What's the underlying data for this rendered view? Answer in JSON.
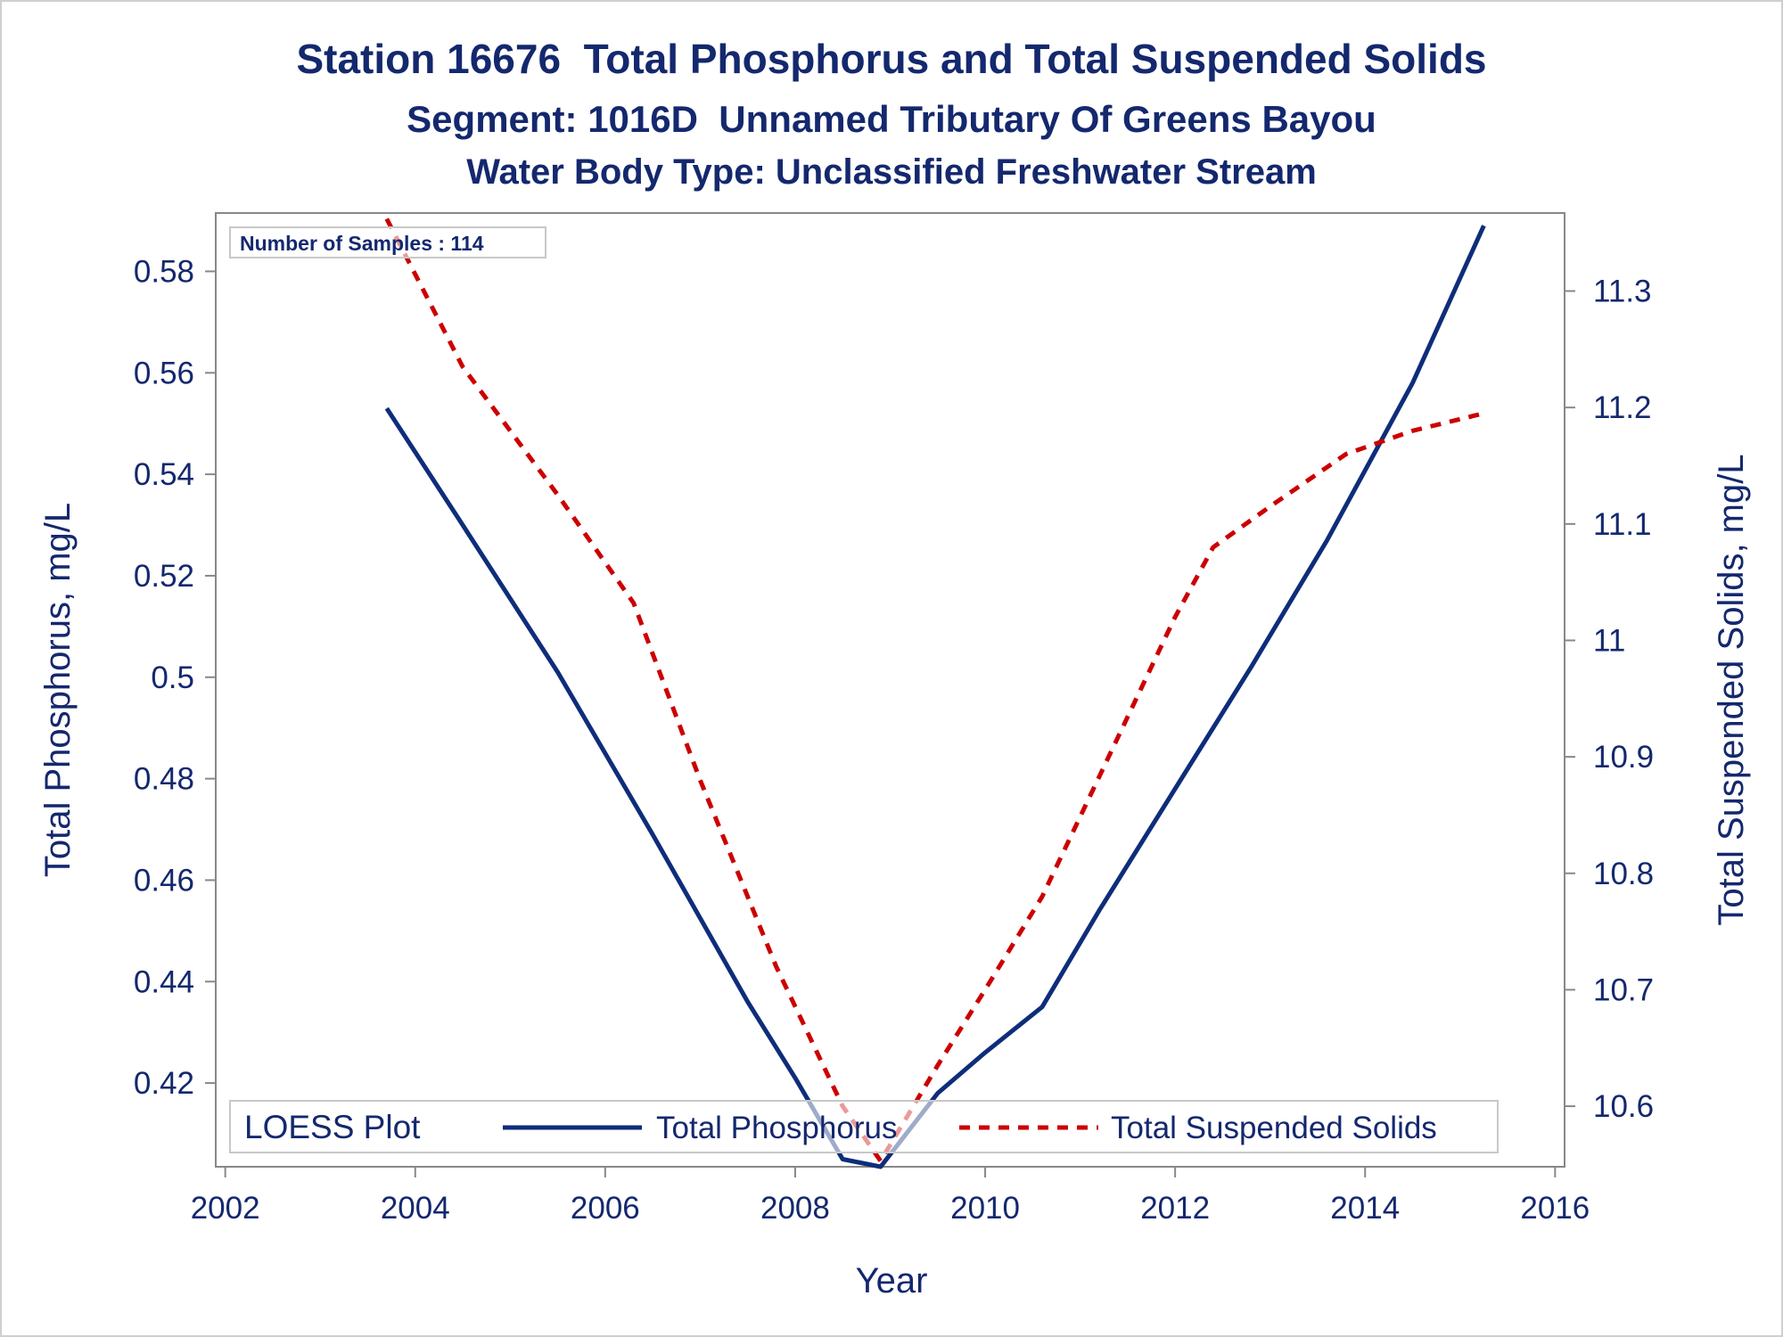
{
  "colors": {
    "text": "#14286e",
    "phosphorus": "#0e2d7a",
    "solids": "#cc0000",
    "axis": "#888888",
    "border": "#cfcfcf"
  },
  "chart_data": {
    "type": "line",
    "title": "Station 16676  Total Phosphorus and Total Suspended Solids",
    "subtitle": "Segment: 1016D  Unnamed Tributary Of Greens Bayou",
    "subtitle2": "Water Body Type: Unclassified Freshwater Stream",
    "annotation": "Number of Samples : 114",
    "xlabel": "Year",
    "ylabel_left": "Total Phosphorus, mg/L",
    "ylabel_right": "Total Suspended Solids, mg/L",
    "xlim": [
      2001.9,
      2016.1
    ],
    "ylim_left": [
      0.4035,
      0.5915
    ],
    "ylim_right": [
      10.548,
      11.367
    ],
    "x_ticks": [
      2002,
      2004,
      2006,
      2008,
      2010,
      2012,
      2014,
      2016
    ],
    "x_tick_labels": [
      "2002",
      "2004",
      "2006",
      "2008",
      "2010",
      "2012",
      "2014",
      "2016"
    ],
    "y_left_ticks": [
      0.42,
      0.44,
      0.46,
      0.48,
      0.5,
      0.52,
      0.54,
      0.56,
      0.58
    ],
    "y_left_tick_labels": [
      "0.42",
      "0.44",
      "0.46",
      "0.48",
      "0.5",
      "0.52",
      "0.54",
      "0.56",
      "0.58"
    ],
    "y_right_ticks": [
      10.6,
      10.7,
      10.8,
      10.9,
      11,
      11.1,
      11.2,
      11.3
    ],
    "y_right_tick_labels": [
      "10.6",
      "10.7",
      "10.8",
      "10.9",
      "11",
      "11.1",
      "11.2",
      "11.3"
    ],
    "grid": false,
    "legend": {
      "title": "LOESS Plot",
      "placement": "bottom-inside",
      "entries": [
        "Total Phosphorus",
        "Total Suspended Solids"
      ]
    },
    "series": [
      {
        "name": "Total Phosphorus",
        "axis": "left",
        "style": "solid",
        "x": [
          2003.7,
          2004.5,
          2005.5,
          2006.5,
          2007.5,
          2008.0,
          2008.5,
          2008.9,
          2009.5,
          2010.0,
          2010.6,
          2011.2,
          2012.0,
          2012.8,
          2013.6,
          2014.5,
          2015.25
        ],
        "values": [
          0.553,
          0.53,
          0.501,
          0.469,
          0.436,
          0.421,
          0.405,
          0.4035,
          0.418,
          0.426,
          0.435,
          0.454,
          0.478,
          0.502,
          0.527,
          0.558,
          0.589
        ]
      },
      {
        "name": "Total Suspended Solids",
        "axis": "right",
        "style": "dashed",
        "x": [
          2003.7,
          2004.5,
          2005.5,
          2006.3,
          2007.0,
          2007.8,
          2008.5,
          2008.9,
          2009.5,
          2010.0,
          2010.6,
          2011.3,
          2012.0,
          2012.4,
          2013.0,
          2013.8,
          2014.5,
          2015.25
        ],
        "values": [
          11.362,
          11.235,
          11.125,
          11.032,
          10.88,
          10.72,
          10.6,
          10.553,
          10.635,
          10.7,
          10.78,
          10.9,
          11.02,
          11.08,
          11.115,
          11.16,
          11.18,
          11.195
        ]
      }
    ]
  }
}
